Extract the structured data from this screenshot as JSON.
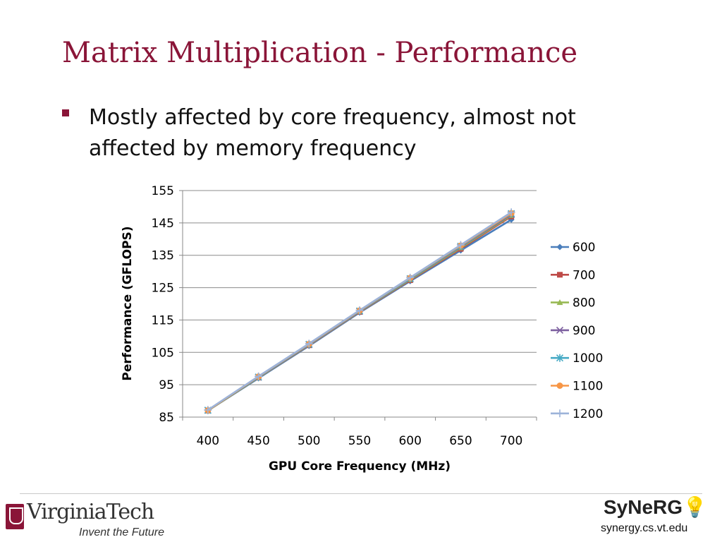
{
  "slide": {
    "title": "Matrix Multiplication - Performance",
    "bullet": "Mostly affected by core frequency, almost not affected by memory frequency"
  },
  "footer": {
    "vt_name": "VirginiaTech",
    "vt_tagline": "Invent the Future",
    "synergy_logo": "SyNeRG",
    "synergy_url": "synergy.cs.vt.edu"
  },
  "colors": {
    "title": "#8a1538",
    "grid": "#8c8c8c"
  },
  "chart_data": {
    "type": "line",
    "xlabel": "GPU Core Frequency (MHz)",
    "ylabel": "Performance (GFLOPS)",
    "categories": [
      "400",
      "450",
      "500",
      "550",
      "600",
      "650",
      "700"
    ],
    "ylim": [
      85,
      155
    ],
    "yticks": [
      85,
      95,
      105,
      115,
      125,
      135,
      145,
      155
    ],
    "grid": true,
    "legend_position": "right",
    "series": [
      {
        "name": "600",
        "color": "#4a7ebb",
        "marker": "diamond",
        "values": [
          87.0,
          97.0,
          107.0,
          117.3,
          127.0,
          136.5,
          146.0
        ]
      },
      {
        "name": "700",
        "color": "#be4b48",
        "marker": "square",
        "values": [
          87.0,
          97.2,
          107.2,
          117.5,
          127.3,
          137.0,
          147.0
        ]
      },
      {
        "name": "800",
        "color": "#98b954",
        "marker": "triangle",
        "values": [
          87.0,
          97.2,
          107.3,
          117.6,
          127.5,
          137.3,
          147.3
        ]
      },
      {
        "name": "900",
        "color": "#7d60a0",
        "marker": "x",
        "values": [
          87.1,
          97.3,
          107.4,
          117.7,
          127.7,
          137.6,
          147.6
        ]
      },
      {
        "name": "1000",
        "color": "#46aac5",
        "marker": "star",
        "values": [
          87.1,
          97.4,
          107.5,
          117.8,
          127.8,
          137.8,
          147.9
        ]
      },
      {
        "name": "1100",
        "color": "#f79646",
        "marker": "circle",
        "values": [
          87.1,
          97.5,
          107.6,
          117.9,
          128.0,
          138.0,
          148.0
        ]
      },
      {
        "name": "1200",
        "color": "#9db3d9",
        "marker": "plus",
        "values": [
          87.2,
          97.6,
          107.7,
          118.0,
          128.1,
          138.2,
          148.3
        ]
      }
    ]
  }
}
